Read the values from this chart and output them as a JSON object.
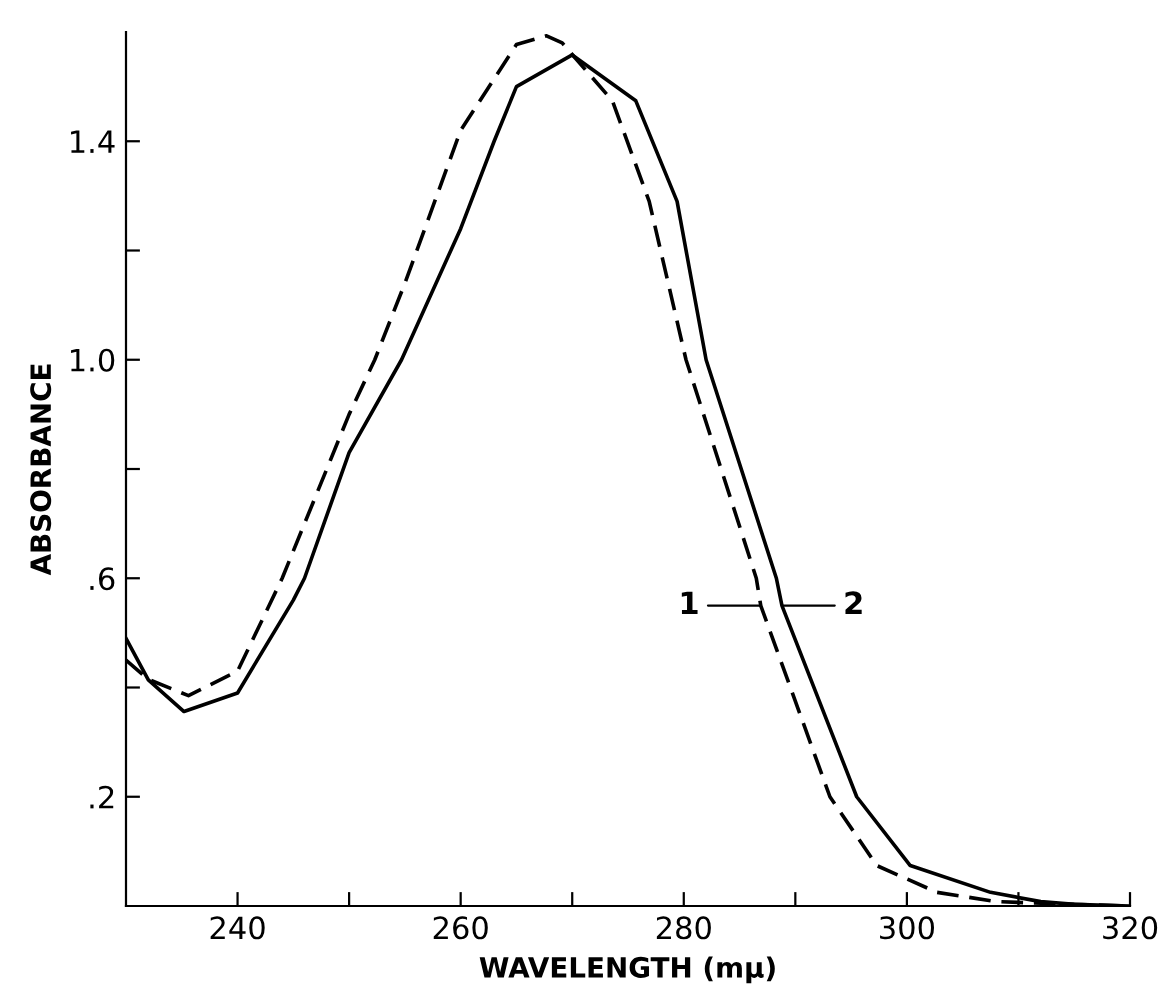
{
  "chart_data": {
    "type": "line",
    "xlabel": "WAVELENGTH (mμ)",
    "ylabel": "ABSORBANCE",
    "xlim": [
      230,
      320
    ],
    "ylim": [
      0,
      1.6
    ],
    "xticks": [
      240,
      {
        "value": 250,
        "label": null
      },
      260,
      {
        "value": 270,
        "label": null
      },
      280,
      {
        "value": 290,
        "label": null
      },
      300,
      {
        "value": 310,
        "label": null
      },
      320
    ],
    "yticks": [
      {
        "value": 0.2,
        "label": ".2"
      },
      {
        "value": 0.4,
        "label": null
      },
      {
        "value": 0.6,
        "label": ".6"
      },
      {
        "value": 0.8,
        "label": null
      },
      {
        "value": 1.0,
        "label": "1.0"
      },
      {
        "value": 1.2,
        "label": null
      },
      1.4
    ],
    "grid": false,
    "marker": "none",
    "series": [
      {
        "color": "#000000",
        "line_style": "dashed",
        "x": [
          230,
          232,
          235.6,
          240,
          244,
          250,
          252.3,
          255,
          260,
          265,
          267.7,
          269.1,
          273.6,
          276.9,
          280.2,
          286.5,
          286.9,
          293.1,
          297.3,
          302.7,
          308,
          315,
          320
        ],
        "values": [
          0.45,
          0.415,
          0.385,
          0.43,
          0.6,
          0.9,
          1.0,
          1.14,
          1.42,
          1.577,
          1.593,
          1.58,
          1.474,
          1.29,
          1.0,
          0.6,
          0.55,
          0.2,
          0.074,
          0.025,
          0.008,
          0.003,
          0.0
        ]
      },
      {
        "color": "#000000",
        "line_style": "solid",
        "x": [
          230,
          232,
          235.2,
          240,
          245,
          246,
          250,
          254.7,
          260,
          263,
          265,
          270,
          275.7,
          279.4,
          282,
          288.3,
          288.8,
          295.5,
          300.3,
          307.5,
          312,
          315,
          320
        ],
        "values": [
          0.49,
          0.414,
          0.356,
          0.39,
          0.56,
          0.6,
          0.83,
          1.0,
          1.24,
          1.4,
          1.5,
          1.558,
          1.474,
          1.29,
          1.0,
          0.6,
          0.55,
          0.2,
          0.074,
          0.025,
          0.008,
          0.003,
          0.0
        ]
      }
    ],
    "annotations": [
      {
        "text": "1",
        "x": 286.9,
        "y": 0.55
      },
      {
        "text": "2",
        "x": 288.8,
        "y": 0.55
      }
    ]
  }
}
